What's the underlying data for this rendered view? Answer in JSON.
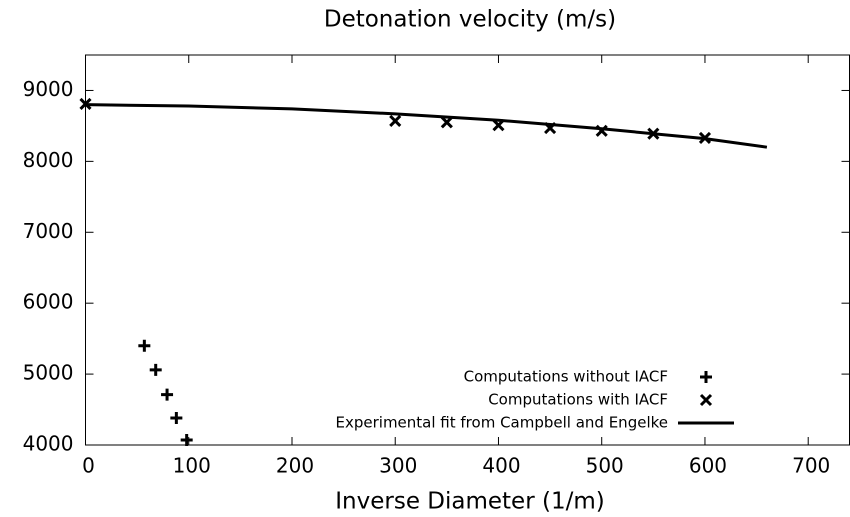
{
  "chart_data": {
    "type": "scatter",
    "title": "Detonation velocity (m/s)",
    "xlabel": "Inverse Diameter (1/m)",
    "xlim": [
      0,
      740
    ],
    "xticks": [
      0,
      100,
      200,
      300,
      400,
      500,
      600,
      700
    ],
    "ylim": [
      4000,
      9500
    ],
    "yticks": [
      4000,
      5000,
      6000,
      7000,
      8000,
      9000
    ],
    "legend": "lower right",
    "series": [
      {
        "name": "Computations without IACF",
        "marker": "plus",
        "color": "#000000",
        "x": [
          57,
          68,
          79,
          88,
          98
        ],
        "values": [
          5400,
          5060,
          4710,
          4380,
          4070
        ]
      },
      {
        "name": "Computations with IACF",
        "marker": "x",
        "color": "#000000",
        "x": [
          0,
          300,
          350,
          400,
          450,
          500,
          550,
          600
        ],
        "values": [
          8810,
          8570,
          8550,
          8510,
          8470,
          8430,
          8390,
          8330
        ]
      },
      {
        "name": "Experimental fit from Campbell and Engelke",
        "marker": "line",
        "color": "#000000",
        "x": [
          0,
          100,
          200,
          300,
          400,
          500,
          600,
          660
        ],
        "values": [
          8800,
          8780,
          8740,
          8670,
          8580,
          8460,
          8320,
          8200
        ]
      }
    ]
  }
}
